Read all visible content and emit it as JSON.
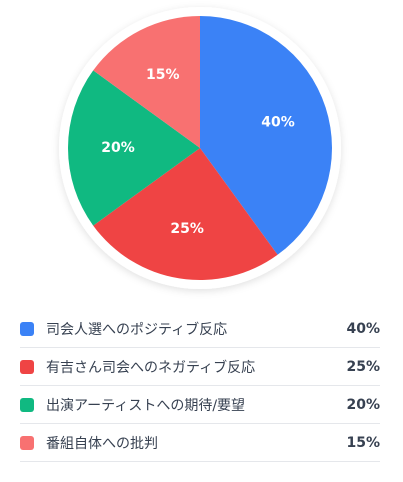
{
  "chart_data": {
    "type": "pie",
    "title": "",
    "legend_position": "bottom",
    "slices": [
      {
        "label": "司会人選へのポジティブ反応",
        "value": 40,
        "display": "40%",
        "color": "#3b82f6"
      },
      {
        "label": "有吉さん司会へのネガティブ反応",
        "value": 25,
        "display": "25%",
        "color": "#ef4444"
      },
      {
        "label": "出演アーティストへの期待/要望",
        "value": 20,
        "display": "20%",
        "color": "#10b981"
      },
      {
        "label": "番組自体への批判",
        "value": 15,
        "display": "15%",
        "color": "#f87171"
      }
    ]
  }
}
